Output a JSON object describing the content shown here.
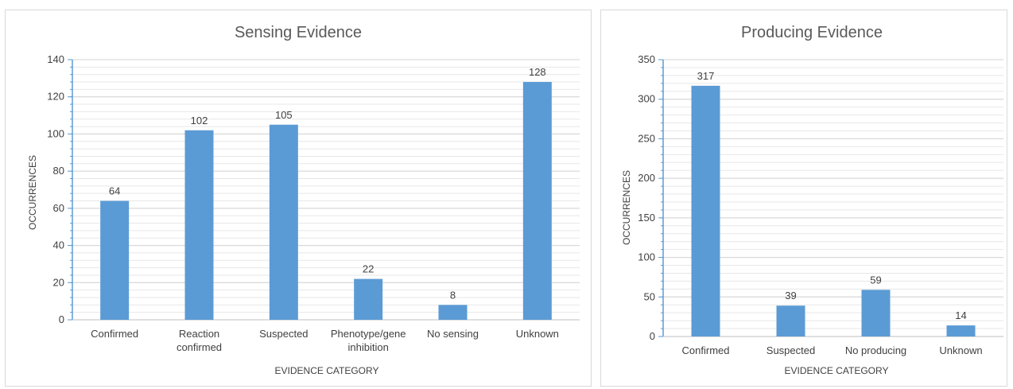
{
  "chart_data": [
    {
      "type": "bar",
      "title": "Sensing Evidence",
      "xlabel": "EVIDENCE CATEGORY",
      "ylabel": "OCCURRENCES",
      "categories": [
        [
          "Confirmed"
        ],
        [
          "Reaction",
          "confirmed"
        ],
        [
          "Suspected"
        ],
        [
          "Phenotype/gene",
          "inhibition"
        ],
        [
          "No sensing"
        ],
        [
          "Unknown"
        ]
      ],
      "values": [
        64,
        102,
        105,
        22,
        8,
        128
      ],
      "ylim": [
        0,
        140
      ],
      "yticks": [
        0,
        20,
        40,
        60,
        80,
        100,
        120,
        140
      ],
      "minor_tick_step": 4,
      "grid": true,
      "bar_color": "#5b9bd5"
    },
    {
      "type": "bar",
      "title": "Producing Evidence",
      "xlabel": "EVIDENCE CATEGORY",
      "ylabel": "OCCURRENCES",
      "categories": [
        [
          "Confirmed"
        ],
        [
          "Suspected"
        ],
        [
          "No producing"
        ],
        [
          "Unknown"
        ]
      ],
      "values": [
        317,
        39,
        59,
        14
      ],
      "ylim": [
        0,
        350
      ],
      "yticks": [
        0,
        50,
        100,
        150,
        200,
        250,
        300,
        350
      ],
      "minor_tick_step": 10,
      "grid": true,
      "bar_color": "#5b9bd5"
    }
  ]
}
